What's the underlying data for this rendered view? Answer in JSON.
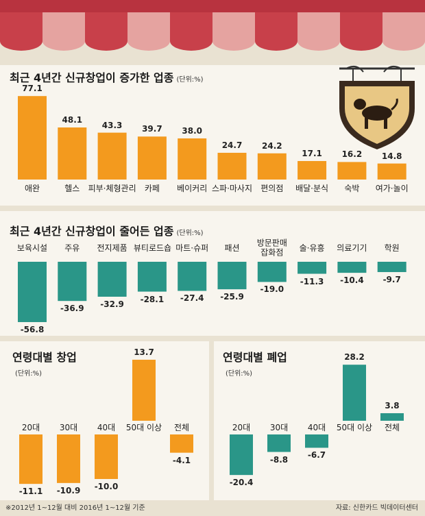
{
  "chart_data": [
    {
      "type": "bar",
      "title": "최근 4년간 신규창업이 증가한 업종",
      "unit": "(단위:%)",
      "color": "#f39a1e",
      "categories": [
        "애완",
        "헬스",
        "피부·체형관리",
        "카페",
        "베이커리",
        "스파·마사지",
        "편의점",
        "배달·분식",
        "숙박",
        "여가·놀이"
      ],
      "values": [
        77.1,
        48.1,
        43.3,
        39.7,
        38.0,
        24.7,
        24.2,
        17.1,
        16.2,
        14.8
      ],
      "value_labels": [
        "77.1",
        "48.1",
        "43.3",
        "39.7",
        "38.0",
        "24.7",
        "24.2",
        "17.1",
        "16.2",
        "14.8"
      ]
    },
    {
      "type": "bar",
      "title": "최근 4년간 신규창업이 줄어든 업종",
      "unit": "(단위:%)",
      "color": "#2a9688",
      "categories": [
        "보육시설",
        "주유",
        "전지제품",
        "뷰티로드숍",
        "마트·슈퍼",
        "패션",
        "방문판매 잡화점",
        "술·유흥",
        "의료기기",
        "학원"
      ],
      "values": [
        -56.8,
        -36.9,
        -32.9,
        -28.1,
        -27.4,
        -25.9,
        -19.0,
        -11.3,
        -10.4,
        -9.7
      ],
      "value_labels": [
        "-56.8",
        "-36.9",
        "-32.9",
        "-28.1",
        "-27.4",
        "-25.9",
        "-19.0",
        "-11.3",
        "-10.4",
        "-9.7"
      ]
    },
    {
      "type": "bar",
      "title": "연령대별 창업",
      "unit": "(단위:%)",
      "color": "#f39a1e",
      "categories": [
        "20대",
        "30대",
        "40대",
        "50대 이상",
        "전체"
      ],
      "values": [
        -11.1,
        -10.9,
        -10.0,
        13.7,
        -4.1
      ],
      "value_labels": [
        "-11.1",
        "-10.9",
        "-10.0",
        "13.7",
        "-4.1"
      ]
    },
    {
      "type": "bar",
      "title": "연령대별 폐업",
      "unit": "(단위:%)",
      "color": "#2a9688",
      "categories": [
        "20대",
        "30대",
        "40대",
        "50대 이상",
        "전체"
      ],
      "values": [
        -20.4,
        -8.8,
        -6.7,
        28.2,
        3.8
      ],
      "value_labels": [
        "-20.4",
        "-8.8",
        "-6.7",
        "28.2",
        "3.8"
      ]
    }
  ],
  "note": "※2012년 1~12월 대비 2016년 1~12월 기준",
  "source": "자료: 신한카드 빅데이터센터"
}
